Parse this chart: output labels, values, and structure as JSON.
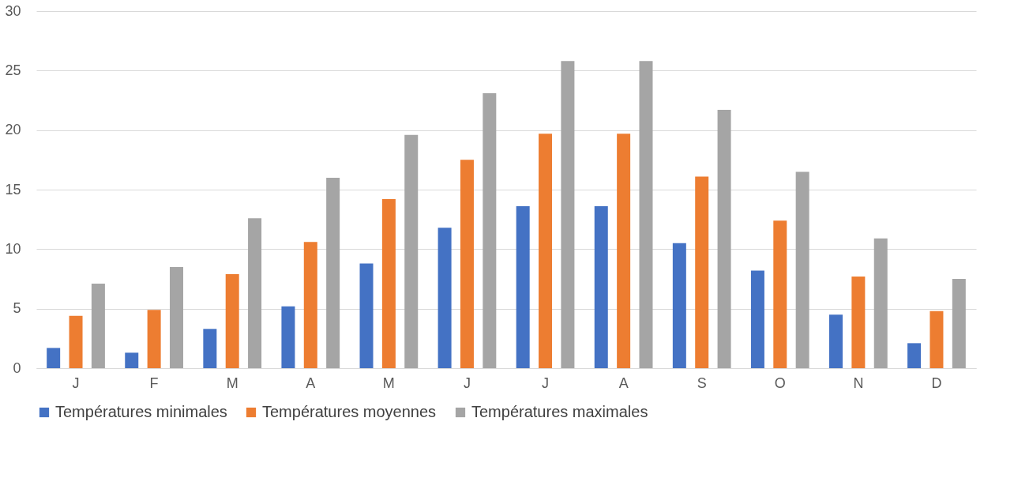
{
  "chart_data": {
    "type": "bar",
    "categories": [
      "J",
      "F",
      "M",
      "A",
      "M",
      "J",
      "J",
      "A",
      "S",
      "O",
      "N",
      "D"
    ],
    "series": [
      {
        "name": "Températures minimales",
        "color": "#4472c4",
        "values": [
          1.7,
          1.3,
          3.3,
          5.2,
          8.8,
          11.8,
          13.6,
          13.6,
          10.5,
          8.2,
          4.5,
          2.1
        ]
      },
      {
        "name": "Températures moyennes",
        "color": "#ed7d31",
        "values": [
          4.4,
          4.9,
          7.9,
          10.6,
          14.2,
          17.5,
          19.7,
          19.7,
          16.1,
          12.4,
          7.7,
          4.8
        ]
      },
      {
        "name": "Températures maximales",
        "color": "#a5a5a5",
        "values": [
          7.1,
          8.5,
          12.6,
          16.0,
          19.6,
          23.1,
          25.8,
          25.8,
          21.7,
          16.5,
          10.9,
          7.5
        ]
      }
    ],
    "ylim": [
      0,
      30
    ],
    "yticks": [
      0,
      5,
      10,
      15,
      20,
      25,
      30
    ],
    "grid": "y",
    "legend": "bottom"
  }
}
